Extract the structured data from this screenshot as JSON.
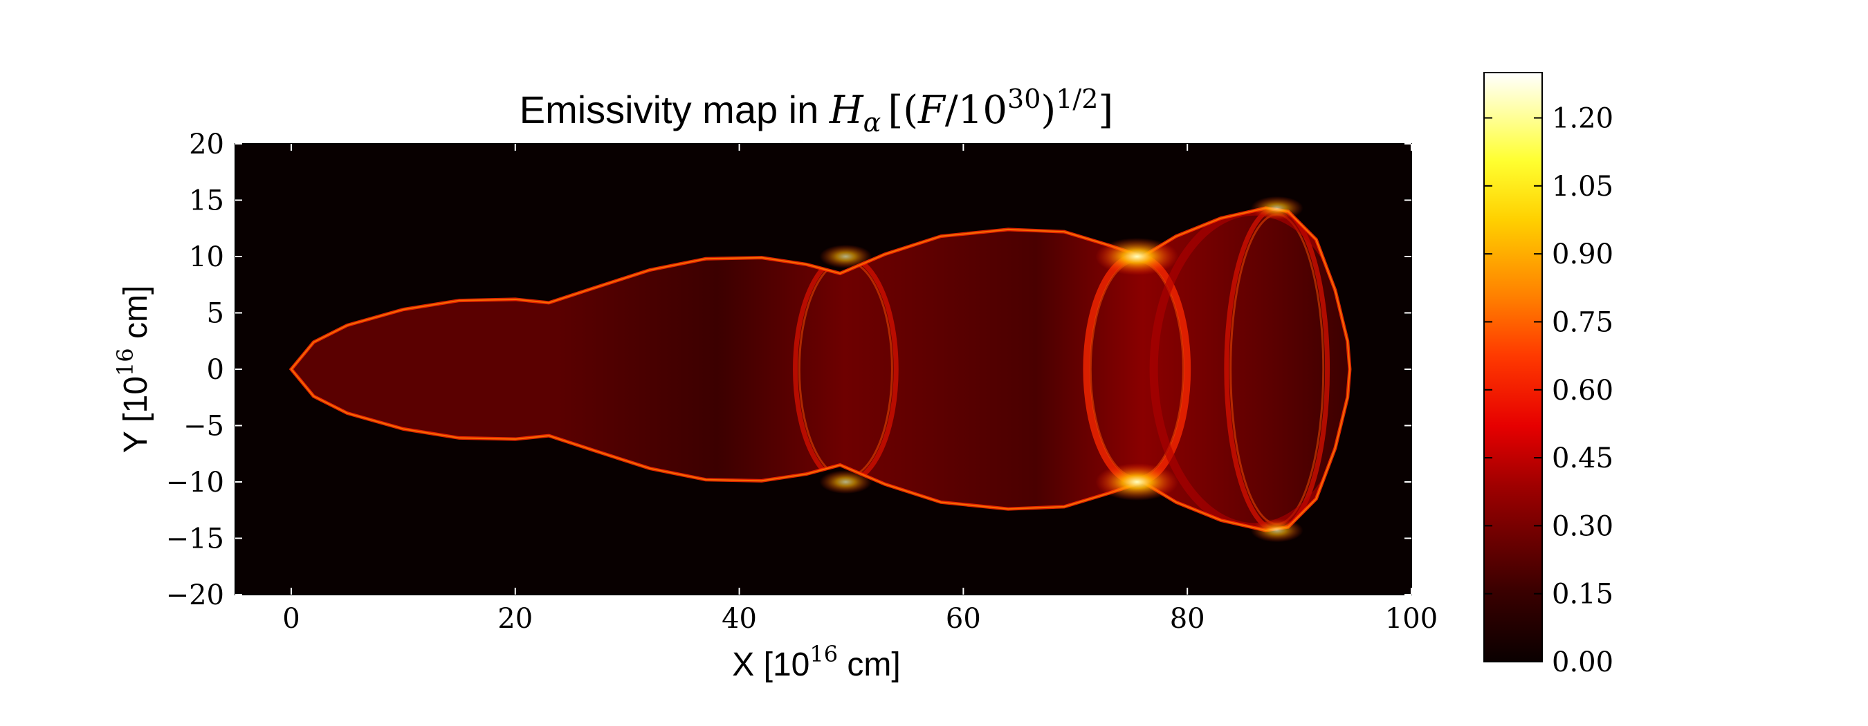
{
  "chart_data": {
    "type": "heatmap",
    "title": {
      "prefix": "Emissivity map in ",
      "symbol": "H",
      "symbol_sub": "α",
      "unit_open": "[(",
      "unit_var": "F",
      "unit_div": "/10",
      "unit_exp": "30",
      "unit_close": ")",
      "unit_pow": "1/2",
      "unit_end": "]"
    },
    "xlabel": {
      "prefix": "X [10",
      "exp": "16",
      "suffix": " cm]"
    },
    "ylabel": {
      "prefix": "Y [10",
      "exp": "16",
      "suffix": " cm]"
    },
    "xlim": [
      -5,
      100
    ],
    "ylim": [
      -20,
      20
    ],
    "x_ticks": [
      {
        "value": 0,
        "label": "0"
      },
      {
        "value": 20,
        "label": "20"
      },
      {
        "value": 40,
        "label": "40"
      },
      {
        "value": 60,
        "label": "60"
      },
      {
        "value": 80,
        "label": "80"
      },
      {
        "value": 100,
        "label": "100"
      }
    ],
    "y_ticks": [
      {
        "value": 20,
        "label": "20"
      },
      {
        "value": 15,
        "label": "15"
      },
      {
        "value": 10,
        "label": "10"
      },
      {
        "value": 5,
        "label": "5"
      },
      {
        "value": 0,
        "label": "0"
      },
      {
        "value": -5,
        "label": "−5"
      },
      {
        "value": -10,
        "label": "−10"
      },
      {
        "value": -15,
        "label": "−15"
      },
      {
        "value": -20,
        "label": "−20"
      }
    ],
    "colorbar": {
      "colormap": "hot",
      "range": [
        0.0,
        1.3
      ],
      "ticks": [
        {
          "value": 1.2,
          "label": "1.20"
        },
        {
          "value": 1.05,
          "label": "1.05"
        },
        {
          "value": 0.9,
          "label": "0.90"
        },
        {
          "value": 0.75,
          "label": "0.75"
        },
        {
          "value": 0.6,
          "label": "0.60"
        },
        {
          "value": 0.45,
          "label": "0.45"
        },
        {
          "value": 0.3,
          "label": "0.30"
        },
        {
          "value": 0.15,
          "label": "0.15"
        },
        {
          "value": 0.0,
          "label": "0.00"
        }
      ]
    },
    "jet_outline": [
      [
        0,
        0
      ],
      [
        2,
        2.4
      ],
      [
        5,
        3.9
      ],
      [
        10,
        5.3
      ],
      [
        15,
        6.1
      ],
      [
        20,
        6.2
      ],
      [
        23,
        5.9
      ],
      [
        27,
        7.2
      ],
      [
        32,
        8.8
      ],
      [
        37,
        9.8
      ],
      [
        42,
        9.9
      ],
      [
        46,
        9.3
      ],
      [
        49,
        8.5
      ],
      [
        53,
        10.2
      ],
      [
        58,
        11.8
      ],
      [
        64,
        12.4
      ],
      [
        69,
        12.2
      ],
      [
        73,
        11.0
      ],
      [
        76,
        10.0
      ],
      [
        79,
        11.8
      ],
      [
        83,
        13.4
      ],
      [
        87,
        14.3
      ],
      [
        89,
        14.0
      ],
      [
        91.5,
        11.5
      ],
      [
        93.2,
        7.0
      ],
      [
        94.3,
        2.5
      ],
      [
        94.5,
        0
      ]
    ],
    "bright_rings": [
      {
        "x": 49.5,
        "half_width": 10.0,
        "emissivity": 0.55
      },
      {
        "x": 75.5,
        "half_width": 10.0,
        "emissivity": 0.9
      },
      {
        "x": 88.0,
        "half_width": 14.3,
        "emissivity": 0.6
      }
    ],
    "background_emissivity": 0.0,
    "grid": false,
    "legend": "none"
  }
}
